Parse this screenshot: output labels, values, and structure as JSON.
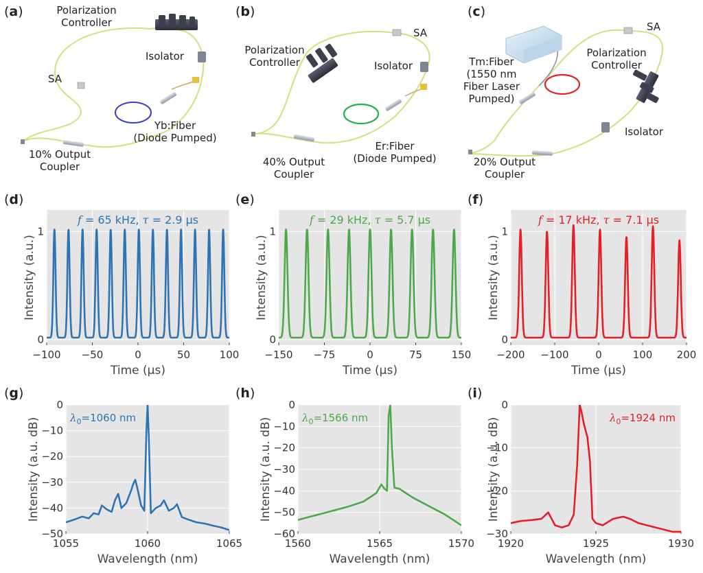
{
  "panels": {
    "a": {
      "letter": "a",
      "labels": {
        "pc": "Polarization\nController",
        "isolator": "Isolator",
        "sa": "SA",
        "fiber": "Yb:Fiber\n(Diode Pumped)",
        "coupler": "10% Output\nCoupler"
      }
    },
    "b": {
      "letter": "b",
      "labels": {
        "pc": "Polarization\nController",
        "isolator": "Isolator",
        "sa": "SA",
        "fiber": "Er:Fiber\n(Diode Pumped)",
        "coupler": "40% Output\nCoupler"
      }
    },
    "c": {
      "letter": "c",
      "labels": {
        "pc": "Polarization\nController",
        "isolator": "Isolator",
        "sa": "SA",
        "fiber": "Tm:Fiber\n(1550 nm\nFiber Laser\nPumped)",
        "coupler": "20% Output\nCoupler"
      }
    },
    "d": {
      "letter": "d"
    },
    "e": {
      "letter": "e"
    },
    "f": {
      "letter": "f"
    },
    "g": {
      "letter": "g"
    },
    "h": {
      "letter": "h"
    },
    "i": {
      "letter": "i"
    }
  },
  "colors": {
    "blue": "#2e73b4",
    "green": "#4ea84a",
    "red": "#e41f26",
    "plot_bg": "#e5e5e5",
    "fiber": "#d6df7e"
  },
  "chart_data": [
    {
      "id": "d",
      "type": "line",
      "color": "#2e73b4",
      "xlabel": "Time (μs)",
      "ylabel": "Intensity (a.u.)",
      "xlim": [
        -100,
        100
      ],
      "ylim": [
        -0.05,
        1.2
      ],
      "xticks": [
        -100,
        -50,
        0,
        50,
        100
      ],
      "yticks": [
        0,
        1
      ],
      "annotation": {
        "f_sym": "f",
        "f_text": " = 65 kHz, ",
        "tau_sym": "τ",
        "tau_text": " = 2.9 μs"
      },
      "pulse": {
        "period": 15.4,
        "offset": 0.9,
        "width": 2.9,
        "peaks": [
          1.0
        ]
      }
    },
    {
      "id": "e",
      "type": "line",
      "color": "#4ea84a",
      "xlabel": "Time (μs)",
      "ylabel": "Intensity (a.u.)",
      "xlim": [
        -150,
        150
      ],
      "ylim": [
        -0.05,
        1.2
      ],
      "xticks": [
        -150,
        -75,
        0,
        75,
        150
      ],
      "yticks": [
        0,
        1
      ],
      "annotation": {
        "f_sym": "f",
        "f_text": " = 29 kHz, ",
        "tau_sym": "τ",
        "tau_text": " = 5.7 μs"
      },
      "pulse": {
        "period": 34.5,
        "offset": 0.0,
        "width": 5.7,
        "peaks": [
          1.0
        ]
      }
    },
    {
      "id": "f",
      "type": "line",
      "color": "#e41f26",
      "xlabel": "Time (μs)",
      "ylabel": "Intensity (a.u.)",
      "xlim": [
        -200,
        200
      ],
      "ylim": [
        -0.05,
        1.2
      ],
      "xticks": [
        -200,
        -100,
        0,
        100,
        200
      ],
      "yticks": [
        0,
        1
      ],
      "annotation": {
        "f_sym": "f",
        "f_text": " = 17 kHz, ",
        "tau_sym": "τ",
        "tau_text": " = 7.1 μs"
      },
      "pulse": {
        "period": 60.3,
        "offset": 3.0,
        "width": 7.1,
        "peaks": [
          1.0,
          0.93,
          1.03,
          0.9,
          1.0,
          0.98,
          1.04
        ]
      }
    },
    {
      "id": "g",
      "type": "line",
      "color": "#2e73b4",
      "xlabel": "Wavelength (nm)",
      "ylabel": "Intensity (a.u. dB)",
      "xlim": [
        1055,
        1065
      ],
      "ylim": [
        -50,
        0
      ],
      "xticks": [
        1055,
        1060,
        1065
      ],
      "yticks": [
        -50,
        -40,
        -30,
        -20,
        -10,
        0
      ],
      "annotation": {
        "lam_sym": "λ",
        "lam_sub": "0",
        "lam_text": "=1060 nm"
      },
      "x": [
        1055,
        1055.5,
        1056,
        1056.4,
        1056.7,
        1057,
        1057.2,
        1057.5,
        1057.8,
        1058,
        1058.2,
        1058.4,
        1058.7,
        1059,
        1059.1,
        1059.25,
        1059.4,
        1059.6,
        1059.8,
        1059.93,
        1060,
        1060.07,
        1060.2,
        1060.5,
        1060.8,
        1061,
        1061.3,
        1061.6,
        1061.8,
        1062.1,
        1062.5,
        1063,
        1063.5,
        1064,
        1064.5,
        1065
      ],
      "y": [
        -45.5,
        -44.5,
        -43.3,
        -44,
        -42,
        -42.5,
        -39,
        -40.5,
        -41.5,
        -37,
        -34.5,
        -40,
        -38,
        -33,
        -31,
        -29,
        -33,
        -39,
        -41,
        -10,
        0,
        -12,
        -42,
        -40,
        -39,
        -37,
        -41,
        -40,
        -38.5,
        -43.5,
        -44.5,
        -45.5,
        -46,
        -46.8,
        -47.5,
        -48.5
      ]
    },
    {
      "id": "h",
      "type": "line",
      "color": "#4ea84a",
      "xlabel": "Wavelength (nm)",
      "ylabel": "Intensity (a.u. dB)",
      "xlim": [
        1560,
        1570
      ],
      "ylim": [
        -60,
        0
      ],
      "xticks": [
        1560,
        1565,
        1570
      ],
      "yticks": [
        -60,
        -50,
        -40,
        -30,
        -20,
        -10,
        0
      ],
      "annotation": {
        "lam_sym": "λ",
        "lam_sub": "0",
        "lam_text": "=1566 nm"
      },
      "x": [
        1560,
        1561,
        1562,
        1563,
        1564,
        1564.8,
        1565.1,
        1565.3,
        1565.45,
        1565.55,
        1565.65,
        1565.75,
        1565.9,
        1566.2,
        1566.6,
        1567,
        1568,
        1569,
        1570
      ],
      "y": [
        -53.5,
        -51.5,
        -49.5,
        -47.5,
        -45,
        -41,
        -37,
        -39,
        -40,
        -5,
        0,
        -20,
        -38.5,
        -39,
        -41,
        -43,
        -47,
        -51,
        -56
      ]
    },
    {
      "id": "i",
      "type": "line",
      "color": "#e41f26",
      "xlabel": "Wavelength (nm)",
      "ylabel": "Intensity (a.u. dB)",
      "xlim": [
        1920,
        1930
      ],
      "ylim": [
        -30,
        0
      ],
      "xticks": [
        1920,
        1925,
        1930
      ],
      "yticks": [
        -30,
        -20,
        -10,
        0
      ],
      "annotation": {
        "lam_sym": "λ",
        "lam_sub": "0",
        "lam_text": "=1924 nm"
      },
      "x": [
        1920,
        1920.6,
        1921.2,
        1921.8,
        1922.2,
        1922.6,
        1923,
        1923.4,
        1923.7,
        1923.9,
        1924.05,
        1924.15,
        1924.3,
        1924.5,
        1924.65,
        1924.8,
        1925,
        1925.4,
        1926,
        1926.6,
        1927,
        1927.5,
        1928,
        1928.5,
        1929,
        1929.5,
        1930
      ],
      "y": [
        -27.5,
        -27,
        -26.8,
        -26.5,
        -25,
        -28,
        -28.5,
        -28,
        -25.5,
        -14,
        0,
        -1.5,
        -4.5,
        -7.5,
        -13,
        -26.5,
        -27.5,
        -28,
        -26.5,
        -26,
        -26.5,
        -27.5,
        -28,
        -28.5,
        -29,
        -29.5,
        -29.5
      ]
    }
  ]
}
